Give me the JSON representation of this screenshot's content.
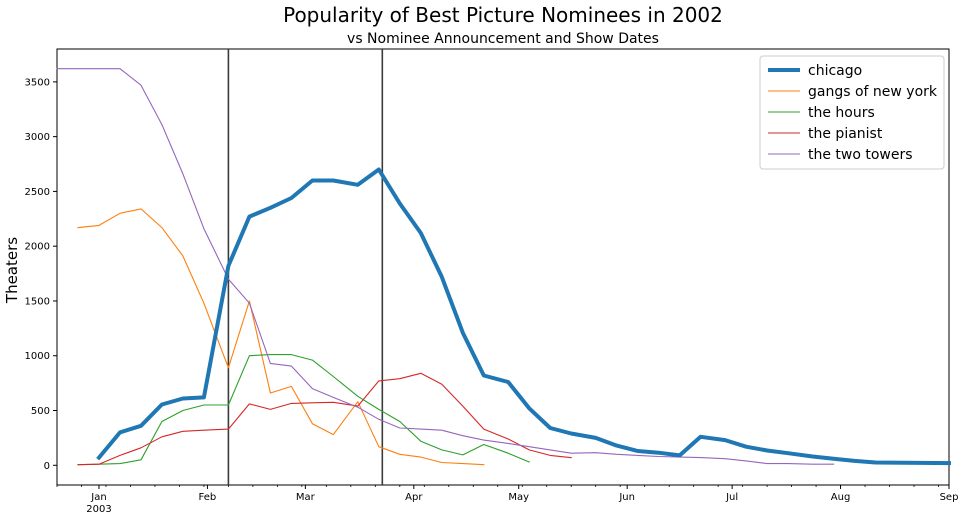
{
  "chart_data": {
    "type": "line",
    "title": "Popularity of Best Picture Nominees in 2002",
    "subtitle": "vs Nominee Announcement and Show Dates",
    "xlabel": "",
    "ylabel": "Theaters",
    "xlim": [
      "2002-12-20",
      "2003-09-01"
    ],
    "ylim": [
      -180,
      3800
    ],
    "yticks": [
      0,
      500,
      1000,
      1500,
      2000,
      2500,
      3000,
      3500
    ],
    "xticks": [
      {
        "date": "2003-01-01",
        "label": "Jan",
        "sublabel": "2003"
      },
      {
        "date": "2003-02-01",
        "label": "Feb",
        "sublabel": ""
      },
      {
        "date": "2003-03-01",
        "label": "Mar",
        "sublabel": ""
      },
      {
        "date": "2003-04-01",
        "label": "Apr",
        "sublabel": ""
      },
      {
        "date": "2003-05-01",
        "label": "May",
        "sublabel": ""
      },
      {
        "date": "2003-06-01",
        "label": "Jun",
        "sublabel": ""
      },
      {
        "date": "2003-07-01",
        "label": "Jul",
        "sublabel": ""
      },
      {
        "date": "2003-08-01",
        "label": "Aug",
        "sublabel": ""
      },
      {
        "date": "2003-09-01",
        "label": "Sep",
        "sublabel": ""
      }
    ],
    "vlines": [
      "2003-02-07",
      "2003-03-23"
    ],
    "legend_position": "top-right",
    "grid": false,
    "series": [
      {
        "name": "chicago",
        "color": "#1f77b4",
        "width": 4,
        "points": [
          [
            "2003-01-01",
            70
          ],
          [
            "2003-01-07",
            300
          ],
          [
            "2003-01-13",
            360
          ],
          [
            "2003-01-19",
            555
          ],
          [
            "2003-01-25",
            610
          ],
          [
            "2003-01-31",
            620
          ],
          [
            "2003-02-07",
            1820
          ],
          [
            "2003-02-13",
            2270
          ],
          [
            "2003-02-19",
            2350
          ],
          [
            "2003-02-25",
            2440
          ],
          [
            "2003-03-03",
            2600
          ],
          [
            "2003-03-09",
            2600
          ],
          [
            "2003-03-16",
            2560
          ],
          [
            "2003-03-22",
            2700
          ],
          [
            "2003-03-28",
            2390
          ],
          [
            "2003-04-03",
            2120
          ],
          [
            "2003-04-09",
            1720
          ],
          [
            "2003-04-15",
            1210
          ],
          [
            "2003-04-21",
            820
          ],
          [
            "2003-04-28",
            760
          ],
          [
            "2003-05-04",
            520
          ],
          [
            "2003-05-10",
            340
          ],
          [
            "2003-05-16",
            290
          ],
          [
            "2003-05-23",
            250
          ],
          [
            "2003-05-29",
            180
          ],
          [
            "2003-06-04",
            130
          ],
          [
            "2003-06-10",
            115
          ],
          [
            "2003-06-16",
            90
          ],
          [
            "2003-06-22",
            260
          ],
          [
            "2003-06-29",
            230
          ],
          [
            "2003-07-05",
            170
          ],
          [
            "2003-07-11",
            135
          ],
          [
            "2003-07-17",
            110
          ],
          [
            "2003-07-24",
            80
          ],
          [
            "2003-07-30",
            60
          ],
          [
            "2003-08-05",
            40
          ],
          [
            "2003-08-11",
            25
          ],
          [
            "2003-09-01",
            20
          ]
        ]
      },
      {
        "name": "gangs of new york",
        "color": "#ff7f0e",
        "width": 1,
        "points": [
          [
            "2002-12-26",
            2170
          ],
          [
            "2003-01-01",
            2190
          ],
          [
            "2003-01-07",
            2300
          ],
          [
            "2003-01-13",
            2340
          ],
          [
            "2003-01-19",
            2170
          ],
          [
            "2003-01-25",
            1910
          ],
          [
            "2003-01-31",
            1480
          ],
          [
            "2003-02-07",
            890
          ],
          [
            "2003-02-13",
            1500
          ],
          [
            "2003-02-19",
            660
          ],
          [
            "2003-02-25",
            720
          ],
          [
            "2003-03-03",
            380
          ],
          [
            "2003-03-09",
            280
          ],
          [
            "2003-03-16",
            580
          ],
          [
            "2003-03-22",
            170
          ],
          [
            "2003-03-28",
            100
          ],
          [
            "2003-04-03",
            75
          ],
          [
            "2003-04-09",
            25
          ],
          [
            "2003-04-15",
            15
          ],
          [
            "2003-04-21",
            5
          ]
        ]
      },
      {
        "name": "the hours",
        "color": "#2ca02c",
        "width": 1,
        "points": [
          [
            "2002-12-26",
            5
          ],
          [
            "2003-01-01",
            10
          ],
          [
            "2003-01-07",
            15
          ],
          [
            "2003-01-13",
            50
          ],
          [
            "2003-01-19",
            400
          ],
          [
            "2003-01-25",
            500
          ],
          [
            "2003-01-31",
            550
          ],
          [
            "2003-02-07",
            550
          ],
          [
            "2003-02-13",
            1000
          ],
          [
            "2003-02-19",
            1010
          ],
          [
            "2003-02-25",
            1010
          ],
          [
            "2003-03-03",
            960
          ],
          [
            "2003-03-09",
            810
          ],
          [
            "2003-03-16",
            630
          ],
          [
            "2003-03-22",
            510
          ],
          [
            "2003-03-28",
            400
          ],
          [
            "2003-04-03",
            220
          ],
          [
            "2003-04-09",
            140
          ],
          [
            "2003-04-15",
            95
          ],
          [
            "2003-04-21",
            190
          ],
          [
            "2003-04-28",
            110
          ],
          [
            "2003-05-04",
            30
          ]
        ]
      },
      {
        "name": "the pianist",
        "color": "#d62728",
        "width": 1,
        "points": [
          [
            "2002-12-26",
            5
          ],
          [
            "2003-01-01",
            10
          ],
          [
            "2003-01-07",
            90
          ],
          [
            "2003-01-13",
            160
          ],
          [
            "2003-01-19",
            260
          ],
          [
            "2003-01-25",
            310
          ],
          [
            "2003-01-31",
            320
          ],
          [
            "2003-02-07",
            330
          ],
          [
            "2003-02-13",
            560
          ],
          [
            "2003-02-19",
            510
          ],
          [
            "2003-02-25",
            565
          ],
          [
            "2003-03-03",
            570
          ],
          [
            "2003-03-09",
            575
          ],
          [
            "2003-03-16",
            540
          ],
          [
            "2003-03-22",
            770
          ],
          [
            "2003-03-28",
            790
          ],
          [
            "2003-04-03",
            840
          ],
          [
            "2003-04-09",
            740
          ],
          [
            "2003-04-15",
            540
          ],
          [
            "2003-04-21",
            330
          ],
          [
            "2003-04-28",
            240
          ],
          [
            "2003-05-04",
            140
          ],
          [
            "2003-05-10",
            90
          ],
          [
            "2003-05-16",
            70
          ]
        ]
      },
      {
        "name": "the two towers",
        "color": "#9467bd",
        "width": 1,
        "points": [
          [
            "2002-12-20",
            3620
          ],
          [
            "2002-12-26",
            3620
          ],
          [
            "2003-01-01",
            3620
          ],
          [
            "2003-01-07",
            3620
          ],
          [
            "2003-01-13",
            3470
          ],
          [
            "2003-01-19",
            3110
          ],
          [
            "2003-01-25",
            2660
          ],
          [
            "2003-01-31",
            2160
          ],
          [
            "2003-02-07",
            1700
          ],
          [
            "2003-02-13",
            1480
          ],
          [
            "2003-02-19",
            930
          ],
          [
            "2003-02-25",
            905
          ],
          [
            "2003-03-03",
            700
          ],
          [
            "2003-03-09",
            620
          ],
          [
            "2003-03-16",
            530
          ],
          [
            "2003-03-22",
            420
          ],
          [
            "2003-03-28",
            340
          ],
          [
            "2003-04-03",
            330
          ],
          [
            "2003-04-09",
            320
          ],
          [
            "2003-04-15",
            270
          ],
          [
            "2003-04-21",
            230
          ],
          [
            "2003-04-28",
            200
          ],
          [
            "2003-05-04",
            170
          ],
          [
            "2003-05-10",
            140
          ],
          [
            "2003-05-16",
            110
          ],
          [
            "2003-05-23",
            115
          ],
          [
            "2003-05-29",
            100
          ],
          [
            "2003-06-04",
            90
          ],
          [
            "2003-06-10",
            80
          ],
          [
            "2003-06-16",
            75
          ],
          [
            "2003-06-22",
            70
          ],
          [
            "2003-06-29",
            60
          ],
          [
            "2003-07-05",
            40
          ],
          [
            "2003-07-11",
            15
          ],
          [
            "2003-07-17",
            15
          ],
          [
            "2003-07-24",
            10
          ],
          [
            "2003-07-30",
            10
          ]
        ]
      }
    ]
  }
}
